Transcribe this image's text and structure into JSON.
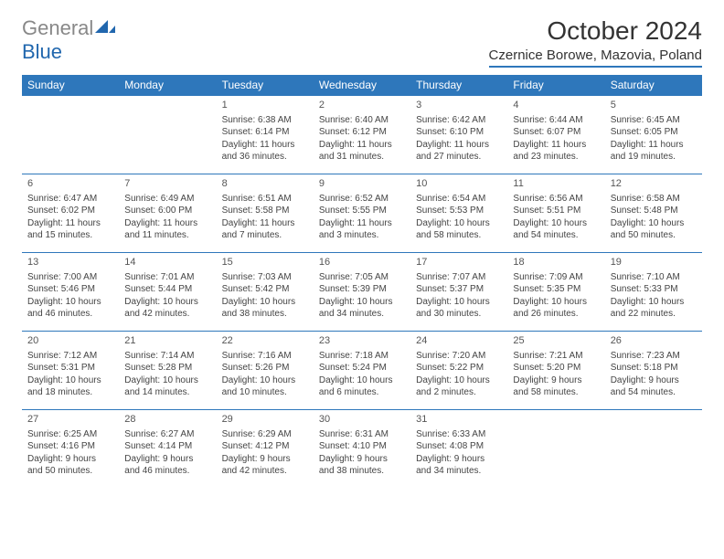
{
  "logo": {
    "gray": "General",
    "blue": "Blue"
  },
  "title": "October 2024",
  "location": "Czernice Borowe, Mazovia, Poland",
  "colors": {
    "header_bg": "#2e77bb",
    "header_text": "#ffffff",
    "accent": "#2167ae",
    "text": "#444444"
  },
  "day_headers": [
    "Sunday",
    "Monday",
    "Tuesday",
    "Wednesday",
    "Thursday",
    "Friday",
    "Saturday"
  ],
  "weeks": [
    [
      null,
      null,
      {
        "n": "1",
        "sr": "Sunrise: 6:38 AM",
        "ss": "Sunset: 6:14 PM",
        "d1": "Daylight: 11 hours",
        "d2": "and 36 minutes."
      },
      {
        "n": "2",
        "sr": "Sunrise: 6:40 AM",
        "ss": "Sunset: 6:12 PM",
        "d1": "Daylight: 11 hours",
        "d2": "and 31 minutes."
      },
      {
        "n": "3",
        "sr": "Sunrise: 6:42 AM",
        "ss": "Sunset: 6:10 PM",
        "d1": "Daylight: 11 hours",
        "d2": "and 27 minutes."
      },
      {
        "n": "4",
        "sr": "Sunrise: 6:44 AM",
        "ss": "Sunset: 6:07 PM",
        "d1": "Daylight: 11 hours",
        "d2": "and 23 minutes."
      },
      {
        "n": "5",
        "sr": "Sunrise: 6:45 AM",
        "ss": "Sunset: 6:05 PM",
        "d1": "Daylight: 11 hours",
        "d2": "and 19 minutes."
      }
    ],
    [
      {
        "n": "6",
        "sr": "Sunrise: 6:47 AM",
        "ss": "Sunset: 6:02 PM",
        "d1": "Daylight: 11 hours",
        "d2": "and 15 minutes."
      },
      {
        "n": "7",
        "sr": "Sunrise: 6:49 AM",
        "ss": "Sunset: 6:00 PM",
        "d1": "Daylight: 11 hours",
        "d2": "and 11 minutes."
      },
      {
        "n": "8",
        "sr": "Sunrise: 6:51 AM",
        "ss": "Sunset: 5:58 PM",
        "d1": "Daylight: 11 hours",
        "d2": "and 7 minutes."
      },
      {
        "n": "9",
        "sr": "Sunrise: 6:52 AM",
        "ss": "Sunset: 5:55 PM",
        "d1": "Daylight: 11 hours",
        "d2": "and 3 minutes."
      },
      {
        "n": "10",
        "sr": "Sunrise: 6:54 AM",
        "ss": "Sunset: 5:53 PM",
        "d1": "Daylight: 10 hours",
        "d2": "and 58 minutes."
      },
      {
        "n": "11",
        "sr": "Sunrise: 6:56 AM",
        "ss": "Sunset: 5:51 PM",
        "d1": "Daylight: 10 hours",
        "d2": "and 54 minutes."
      },
      {
        "n": "12",
        "sr": "Sunrise: 6:58 AM",
        "ss": "Sunset: 5:48 PM",
        "d1": "Daylight: 10 hours",
        "d2": "and 50 minutes."
      }
    ],
    [
      {
        "n": "13",
        "sr": "Sunrise: 7:00 AM",
        "ss": "Sunset: 5:46 PM",
        "d1": "Daylight: 10 hours",
        "d2": "and 46 minutes."
      },
      {
        "n": "14",
        "sr": "Sunrise: 7:01 AM",
        "ss": "Sunset: 5:44 PM",
        "d1": "Daylight: 10 hours",
        "d2": "and 42 minutes."
      },
      {
        "n": "15",
        "sr": "Sunrise: 7:03 AM",
        "ss": "Sunset: 5:42 PM",
        "d1": "Daylight: 10 hours",
        "d2": "and 38 minutes."
      },
      {
        "n": "16",
        "sr": "Sunrise: 7:05 AM",
        "ss": "Sunset: 5:39 PM",
        "d1": "Daylight: 10 hours",
        "d2": "and 34 minutes."
      },
      {
        "n": "17",
        "sr": "Sunrise: 7:07 AM",
        "ss": "Sunset: 5:37 PM",
        "d1": "Daylight: 10 hours",
        "d2": "and 30 minutes."
      },
      {
        "n": "18",
        "sr": "Sunrise: 7:09 AM",
        "ss": "Sunset: 5:35 PM",
        "d1": "Daylight: 10 hours",
        "d2": "and 26 minutes."
      },
      {
        "n": "19",
        "sr": "Sunrise: 7:10 AM",
        "ss": "Sunset: 5:33 PM",
        "d1": "Daylight: 10 hours",
        "d2": "and 22 minutes."
      }
    ],
    [
      {
        "n": "20",
        "sr": "Sunrise: 7:12 AM",
        "ss": "Sunset: 5:31 PM",
        "d1": "Daylight: 10 hours",
        "d2": "and 18 minutes."
      },
      {
        "n": "21",
        "sr": "Sunrise: 7:14 AM",
        "ss": "Sunset: 5:28 PM",
        "d1": "Daylight: 10 hours",
        "d2": "and 14 minutes."
      },
      {
        "n": "22",
        "sr": "Sunrise: 7:16 AM",
        "ss": "Sunset: 5:26 PM",
        "d1": "Daylight: 10 hours",
        "d2": "and 10 minutes."
      },
      {
        "n": "23",
        "sr": "Sunrise: 7:18 AM",
        "ss": "Sunset: 5:24 PM",
        "d1": "Daylight: 10 hours",
        "d2": "and 6 minutes."
      },
      {
        "n": "24",
        "sr": "Sunrise: 7:20 AM",
        "ss": "Sunset: 5:22 PM",
        "d1": "Daylight: 10 hours",
        "d2": "and 2 minutes."
      },
      {
        "n": "25",
        "sr": "Sunrise: 7:21 AM",
        "ss": "Sunset: 5:20 PM",
        "d1": "Daylight: 9 hours",
        "d2": "and 58 minutes."
      },
      {
        "n": "26",
        "sr": "Sunrise: 7:23 AM",
        "ss": "Sunset: 5:18 PM",
        "d1": "Daylight: 9 hours",
        "d2": "and 54 minutes."
      }
    ],
    [
      {
        "n": "27",
        "sr": "Sunrise: 6:25 AM",
        "ss": "Sunset: 4:16 PM",
        "d1": "Daylight: 9 hours",
        "d2": "and 50 minutes."
      },
      {
        "n": "28",
        "sr": "Sunrise: 6:27 AM",
        "ss": "Sunset: 4:14 PM",
        "d1": "Daylight: 9 hours",
        "d2": "and 46 minutes."
      },
      {
        "n": "29",
        "sr": "Sunrise: 6:29 AM",
        "ss": "Sunset: 4:12 PM",
        "d1": "Daylight: 9 hours",
        "d2": "and 42 minutes."
      },
      {
        "n": "30",
        "sr": "Sunrise: 6:31 AM",
        "ss": "Sunset: 4:10 PM",
        "d1": "Daylight: 9 hours",
        "d2": "and 38 minutes."
      },
      {
        "n": "31",
        "sr": "Sunrise: 6:33 AM",
        "ss": "Sunset: 4:08 PM",
        "d1": "Daylight: 9 hours",
        "d2": "and 34 minutes."
      },
      null,
      null
    ]
  ]
}
